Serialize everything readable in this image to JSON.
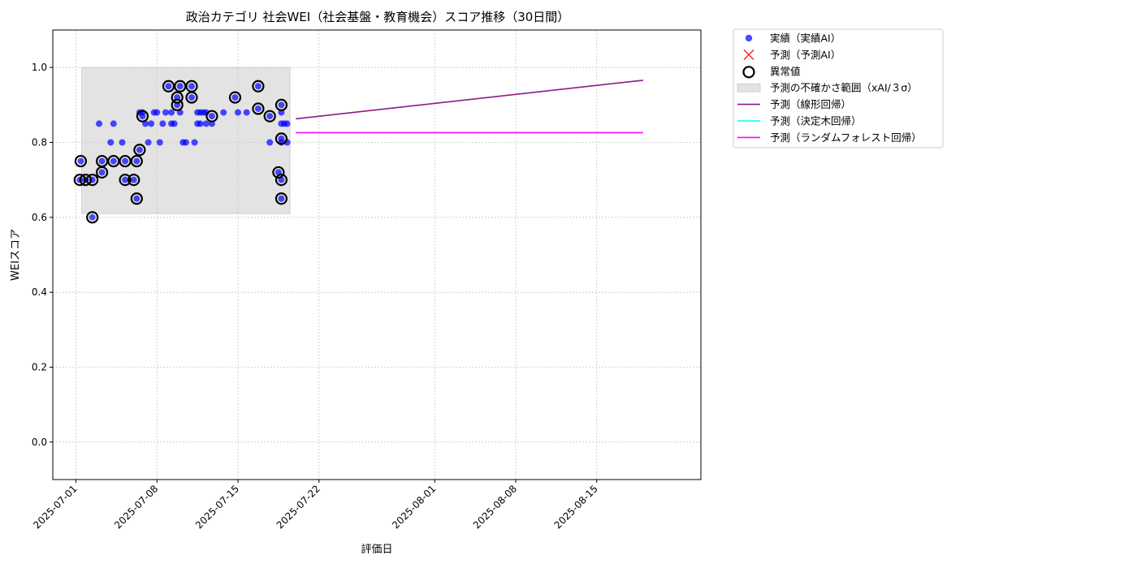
{
  "chart_data": {
    "type": "scatter",
    "title": "政治カテゴリ 社会WEI（社会基盤・教育機会）スコア推移（30日間）",
    "xlabel": "評価日",
    "ylabel": "WEIスコア",
    "xlim": [
      "2025-06-29",
      "2025-08-24"
    ],
    "ylim": [
      -0.1,
      1.1
    ],
    "x_ticks": [
      "2025-07-01",
      "2025-07-08",
      "2025-07-15",
      "2025-07-22",
      "2025-08-01",
      "2025-08-08",
      "2025-08-15"
    ],
    "y_ticks": [
      0.0,
      0.2,
      0.4,
      0.6,
      0.8,
      1.0
    ],
    "grid": true,
    "legend_position": "outside top-right",
    "series": [
      {
        "name": "実績（実績AI）",
        "kind": "scatter",
        "color": "#0000ff",
        "points": [
          {
            "x": "2025-07-01 10:00",
            "y": 0.75
          },
          {
            "x": "2025-07-01 08:00",
            "y": 0.7
          },
          {
            "x": "2025-07-01 20:00",
            "y": 0.7
          },
          {
            "x": "2025-07-02 10:00",
            "y": 0.7
          },
          {
            "x": "2025-07-02 10:00",
            "y": 0.6
          },
          {
            "x": "2025-07-03 00:00",
            "y": 0.85
          },
          {
            "x": "2025-07-03 06:00",
            "y": 0.75
          },
          {
            "x": "2025-07-03 06:00",
            "y": 0.72
          },
          {
            "x": "2025-07-04 00:00",
            "y": 0.8
          },
          {
            "x": "2025-07-04 06:00",
            "y": 0.85
          },
          {
            "x": "2025-07-04 06:00",
            "y": 0.75
          },
          {
            "x": "2025-07-05 00:00",
            "y": 0.8
          },
          {
            "x": "2025-07-05 06:00",
            "y": 0.75
          },
          {
            "x": "2025-07-05 06:00",
            "y": 0.7
          },
          {
            "x": "2025-07-06 00:00",
            "y": 0.7
          },
          {
            "x": "2025-07-06 06:00",
            "y": 0.75
          },
          {
            "x": "2025-07-06 06:00",
            "y": 0.65
          },
          {
            "x": "2025-07-06 12:00",
            "y": 0.88
          },
          {
            "x": "2025-07-06 12:00",
            "y": 0.78
          },
          {
            "x": "2025-07-06 18:00",
            "y": 0.88
          },
          {
            "x": "2025-07-06 18:00",
            "y": 0.87
          },
          {
            "x": "2025-07-07 00:00",
            "y": 0.85
          },
          {
            "x": "2025-07-07 06:00",
            "y": 0.8
          },
          {
            "x": "2025-07-07 12:00",
            "y": 0.85
          },
          {
            "x": "2025-07-07 18:00",
            "y": 0.88
          },
          {
            "x": "2025-07-08 00:00",
            "y": 0.88
          },
          {
            "x": "2025-07-08 06:00",
            "y": 0.8
          },
          {
            "x": "2025-07-08 12:00",
            "y": 0.85
          },
          {
            "x": "2025-07-08 18:00",
            "y": 0.88
          },
          {
            "x": "2025-07-09 00:00",
            "y": 0.95
          },
          {
            "x": "2025-07-09 06:00",
            "y": 0.85
          },
          {
            "x": "2025-07-09 06:00",
            "y": 0.88
          },
          {
            "x": "2025-07-09 12:00",
            "y": 0.85
          },
          {
            "x": "2025-07-09 18:00",
            "y": 0.92
          },
          {
            "x": "2025-07-09 18:00",
            "y": 0.9
          },
          {
            "x": "2025-07-10 00:00",
            "y": 0.95
          },
          {
            "x": "2025-07-10 00:00",
            "y": 0.88
          },
          {
            "x": "2025-07-10 06:00",
            "y": 0.8
          },
          {
            "x": "2025-07-10 12:00",
            "y": 0.8
          },
          {
            "x": "2025-07-11 00:00",
            "y": 0.95
          },
          {
            "x": "2025-07-11 00:00",
            "y": 0.92
          },
          {
            "x": "2025-07-11 06:00",
            "y": 0.8
          },
          {
            "x": "2025-07-11 12:00",
            "y": 0.88
          },
          {
            "x": "2025-07-11 12:00",
            "y": 0.85
          },
          {
            "x": "2025-07-11 18:00",
            "y": 0.88
          },
          {
            "x": "2025-07-11 18:00",
            "y": 0.85
          },
          {
            "x": "2025-07-12 00:00",
            "y": 0.88
          },
          {
            "x": "2025-07-12 06:00",
            "y": 0.88
          },
          {
            "x": "2025-07-12 06:00",
            "y": 0.85
          },
          {
            "x": "2025-07-12 18:00",
            "y": 0.87
          },
          {
            "x": "2025-07-12 18:00",
            "y": 0.85
          },
          {
            "x": "2025-07-13 18:00",
            "y": 0.88
          },
          {
            "x": "2025-07-14 18:00",
            "y": 0.92
          },
          {
            "x": "2025-07-15 00:00",
            "y": 0.88
          },
          {
            "x": "2025-07-15 18:00",
            "y": 0.88
          },
          {
            "x": "2025-07-16 18:00",
            "y": 0.95
          },
          {
            "x": "2025-07-16 18:00",
            "y": 0.89
          },
          {
            "x": "2025-07-17 18:00",
            "y": 0.87
          },
          {
            "x": "2025-07-17 18:00",
            "y": 0.8
          },
          {
            "x": "2025-07-18 12:00",
            "y": 0.72
          },
          {
            "x": "2025-07-18 18:00",
            "y": 0.9
          },
          {
            "x": "2025-07-18 18:00",
            "y": 0.88
          },
          {
            "x": "2025-07-18 18:00",
            "y": 0.85
          },
          {
            "x": "2025-07-18 18:00",
            "y": 0.81
          },
          {
            "x": "2025-07-18 18:00",
            "y": 0.8
          },
          {
            "x": "2025-07-18 18:00",
            "y": 0.7
          },
          {
            "x": "2025-07-18 18:00",
            "y": 0.65
          },
          {
            "x": "2025-07-19 00:00",
            "y": 0.85
          },
          {
            "x": "2025-07-19 06:00",
            "y": 0.8
          },
          {
            "x": "2025-07-19 06:00",
            "y": 0.85
          }
        ]
      },
      {
        "name": "予測（予測AI）",
        "kind": "scatter-x",
        "color": "#ff0000",
        "points": []
      },
      {
        "name": "異常値",
        "kind": "outlier-ring",
        "color": "#000000",
        "points": [
          {
            "x": "2025-07-01 10:00",
            "y": 0.75
          },
          {
            "x": "2025-07-01 08:00",
            "y": 0.7
          },
          {
            "x": "2025-07-01 20:00",
            "y": 0.7
          },
          {
            "x": "2025-07-02 10:00",
            "y": 0.7
          },
          {
            "x": "2025-07-02 10:00",
            "y": 0.6
          },
          {
            "x": "2025-07-03 06:00",
            "y": 0.75
          },
          {
            "x": "2025-07-03 06:00",
            "y": 0.72
          },
          {
            "x": "2025-07-04 06:00",
            "y": 0.75
          },
          {
            "x": "2025-07-05 06:00",
            "y": 0.75
          },
          {
            "x": "2025-07-05 06:00",
            "y": 0.7
          },
          {
            "x": "2025-07-06 00:00",
            "y": 0.7
          },
          {
            "x": "2025-07-06 06:00",
            "y": 0.75
          },
          {
            "x": "2025-07-06 06:00",
            "y": 0.65
          },
          {
            "x": "2025-07-06 12:00",
            "y": 0.78
          },
          {
            "x": "2025-07-06 18:00",
            "y": 0.87
          },
          {
            "x": "2025-07-09 00:00",
            "y": 0.95
          },
          {
            "x": "2025-07-09 18:00",
            "y": 0.92
          },
          {
            "x": "2025-07-09 18:00",
            "y": 0.9
          },
          {
            "x": "2025-07-10 00:00",
            "y": 0.95
          },
          {
            "x": "2025-07-11 00:00",
            "y": 0.95
          },
          {
            "x": "2025-07-11 00:00",
            "y": 0.92
          },
          {
            "x": "2025-07-12 18:00",
            "y": 0.87
          },
          {
            "x": "2025-07-14 18:00",
            "y": 0.92
          },
          {
            "x": "2025-07-16 18:00",
            "y": 0.95
          },
          {
            "x": "2025-07-16 18:00",
            "y": 0.89
          },
          {
            "x": "2025-07-17 18:00",
            "y": 0.87
          },
          {
            "x": "2025-07-18 12:00",
            "y": 0.72
          },
          {
            "x": "2025-07-18 18:00",
            "y": 0.9
          },
          {
            "x": "2025-07-18 18:00",
            "y": 0.81
          },
          {
            "x": "2025-07-18 18:00",
            "y": 0.7
          },
          {
            "x": "2025-07-18 18:00",
            "y": 0.65
          }
        ]
      },
      {
        "name": "予測の不確かさ範囲（xAI/３σ）",
        "kind": "band",
        "color": "#cccccc",
        "x_start": "2025-07-01 12:00",
        "x_end": "2025-07-19 12:00",
        "y_low": 0.61,
        "y_high": 1.0
      },
      {
        "name": "予測（線形回帰）",
        "kind": "line",
        "color": "#8b1a8b",
        "points": [
          {
            "x": "2025-07-20 00:00",
            "y": 0.863
          },
          {
            "x": "2025-08-19 00:00",
            "y": 0.966
          }
        ]
      },
      {
        "name": "予測（決定木回帰）",
        "kind": "line",
        "color": "#00ffff",
        "points": [
          {
            "x": "2025-07-20 00:00",
            "y": 0.826
          },
          {
            "x": "2025-08-19 00:00",
            "y": 0.826
          }
        ]
      },
      {
        "name": "予測（ランダムフォレスト回帰）",
        "kind": "line",
        "color": "#ff00ff",
        "points": [
          {
            "x": "2025-07-20 00:00",
            "y": 0.826
          },
          {
            "x": "2025-08-19 00:00",
            "y": 0.826
          }
        ]
      }
    ]
  }
}
